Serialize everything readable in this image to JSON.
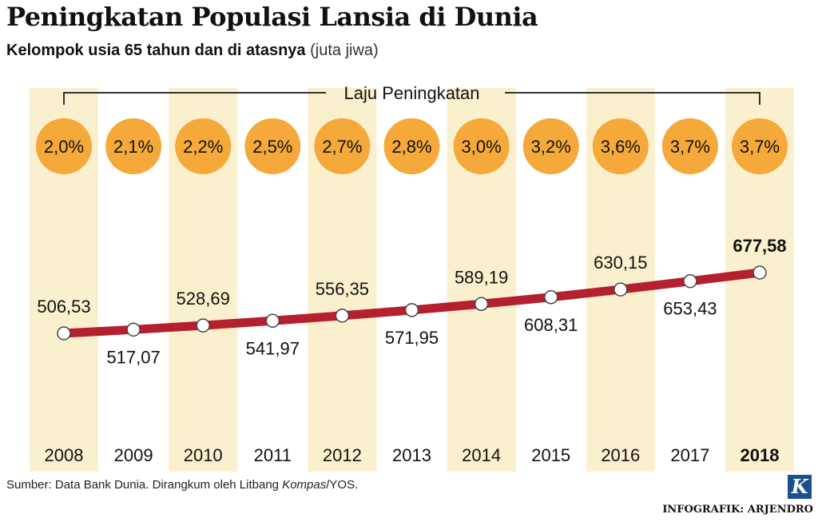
{
  "title": "Peningkatan Populasi Lansia di Dunia",
  "subtitle": "Kelompok usia 65 tahun dan di atasnya",
  "unit": "(juta jiwa)",
  "rate_header": "Laju Peningkatan",
  "source": {
    "prefix": "Sumber: Data Bank Dunia. Dirangkum oleh Litbang ",
    "italic": "Kompas",
    "suffix": "/YOS."
  },
  "logo_letter": "K",
  "credit": "INFOGRAFIK: ARJENDRO",
  "colors": {
    "band": "#fbf0cd",
    "circle": "#f4a93a",
    "line": "#b5202e",
    "marker_fill": "#ffffff"
  },
  "chart_data": {
    "type": "line",
    "categories": [
      "2008",
      "2009",
      "2010",
      "2011",
      "2012",
      "2013",
      "2014",
      "2015",
      "2016",
      "2017",
      "2018"
    ],
    "values": [
      506.53,
      517.07,
      528.69,
      541.97,
      556.35,
      571.95,
      589.19,
      608.31,
      630.15,
      653.43,
      677.58
    ],
    "value_labels": [
      "506,53",
      "517,07",
      "528,69",
      "541,97",
      "556,35",
      "571,95",
      "589,19",
      "608,31",
      "630,15",
      "653,43",
      "677,58"
    ],
    "growth_rates": [
      "2,0%",
      "2,1%",
      "2,2%",
      "2,5%",
      "2,7%",
      "2,8%",
      "3,0%",
      "3,2%",
      "3,6%",
      "3,7%",
      "3,7%"
    ],
    "highlight_category": "2018",
    "grid": false,
    "legend": "none"
  }
}
